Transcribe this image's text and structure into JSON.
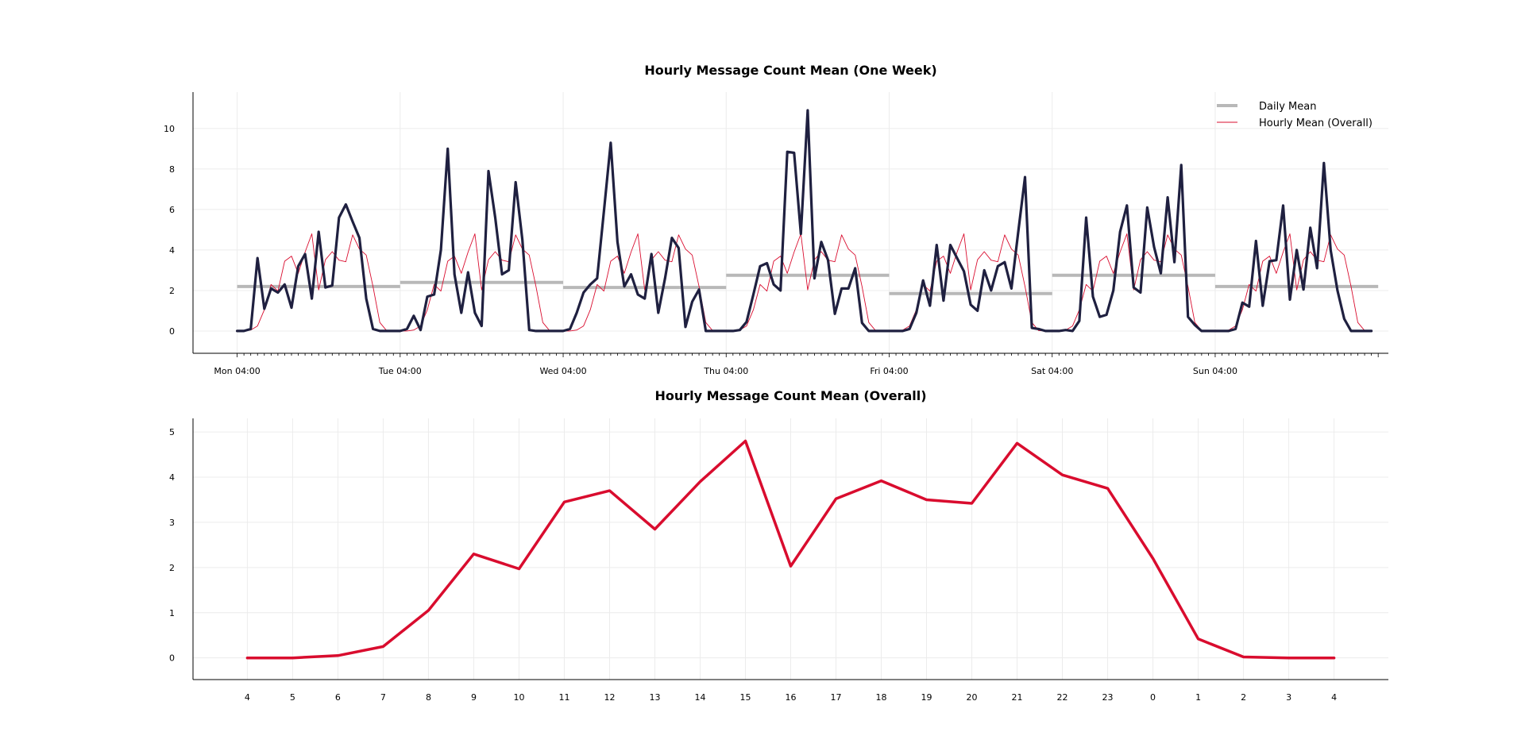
{
  "colors": {
    "week_line": "#1f2040",
    "daily_mean": "#b8b8b8",
    "overall_line": "#d90c2e",
    "grid": "#ececec"
  },
  "chart_data": [
    {
      "type": "line",
      "title": "Hourly Message Count Mean (One Week)",
      "xlabel": "",
      "ylabel": "",
      "ylim": [
        -1.1,
        11.8
      ],
      "xlim": [
        -6.5,
        169.5
      ],
      "yticks": [
        0,
        2,
        4,
        6,
        8,
        10
      ],
      "xticks": [
        {
          "x": 0,
          "label": "Mon 04:00"
        },
        {
          "x": 24,
          "label": "Tue 04:00"
        },
        {
          "x": 48,
          "label": "Wed 04:00"
        },
        {
          "x": 72,
          "label": "Thu 04:00"
        },
        {
          "x": 96,
          "label": "Fri 04:00"
        },
        {
          "x": 120,
          "label": "Sat 04:00"
        },
        {
          "x": 144,
          "label": "Sun 04:00"
        }
      ],
      "grid": true,
      "legend_position": "top-right",
      "legend": [
        {
          "name": "Daily Mean",
          "style": "daily"
        },
        {
          "name": "Hourly Mean (Overall)",
          "style": "overall"
        }
      ],
      "daily_means": [
        {
          "start": 0,
          "end": 24,
          "value": 2.2
        },
        {
          "start": 24,
          "end": 48,
          "value": 2.4
        },
        {
          "start": 48,
          "end": 72,
          "value": 2.15
        },
        {
          "start": 72,
          "end": 96,
          "value": 2.75
        },
        {
          "start": 96,
          "end": 120,
          "value": 1.85
        },
        {
          "start": 120,
          "end": 144,
          "value": 2.75
        },
        {
          "start": 144,
          "end": 168,
          "value": 2.2
        }
      ],
      "series_week": [
        0,
        0,
        0.1,
        3.6,
        1.1,
        2.1,
        1.9,
        2.3,
        1.15,
        3.2,
        3.8,
        1.6,
        4.9,
        2.15,
        2.25,
        5.6,
        6.25,
        5.4,
        4.6,
        1.6,
        0.1,
        0,
        0,
        0,
        0,
        0.1,
        0.75,
        0.05,
        1.7,
        1.8,
        4.0,
        9.0,
        2.8,
        0.9,
        2.9,
        0.9,
        0.25,
        7.9,
        5.6,
        2.8,
        3.0,
        7.35,
        4.5,
        0.05,
        0,
        0,
        0,
        0,
        0,
        0.1,
        0.9,
        1.9,
        2.3,
        2.6,
        5.9,
        9.3,
        4.4,
        2.2,
        2.8,
        1.8,
        1.6,
        3.8,
        0.9,
        2.6,
        4.6,
        4.1,
        0.2,
        1.45,
        2.05,
        0,
        0,
        0,
        0,
        0,
        0.05,
        0.45,
        1.8,
        3.2,
        3.35,
        2.3,
        2.0,
        8.85,
        8.8,
        4.8,
        10.9,
        2.6,
        4.4,
        3.5,
        0.85,
        2.1,
        2.1,
        3.1,
        0.4,
        0,
        0,
        0,
        0,
        0,
        0,
        0.1,
        0.9,
        2.5,
        1.25,
        4.25,
        1.5,
        4.25,
        3.6,
        2.95,
        1.3,
        1.0,
        3.0,
        2.0,
        3.2,
        3.4,
        2.1,
        4.9,
        7.6,
        0.15,
        0.1,
        0,
        0,
        0,
        0.05,
        0,
        0.5,
        5.6,
        1.7,
        0.7,
        0.8,
        2.0,
        4.9,
        6.2,
        2.15,
        1.9,
        6.1,
        4.15,
        2.85,
        6.6,
        3.4,
        8.2,
        0.7,
        0.3,
        0,
        0,
        0,
        0,
        0,
        0.1,
        1.4,
        1.2,
        4.45,
        1.25,
        3.45,
        3.5,
        6.2,
        1.55,
        4.0,
        2.05,
        5.1,
        3.1,
        8.3,
        4.0,
        2.0,
        0.6,
        0,
        0,
        0,
        0
      ],
      "series_overall_repeat": [
        0,
        0,
        0.05,
        0.25,
        1.05,
        2.3,
        1.97,
        3.45,
        3.7,
        2.85,
        3.9,
        4.8,
        2.03,
        3.52,
        3.92,
        3.5,
        3.42,
        4.75,
        4.05,
        3.75,
        2.2,
        0.42,
        0.02,
        0
      ]
    },
    {
      "type": "line",
      "title": "Hourly Message Count Mean (Overall)",
      "xlabel": "",
      "ylabel": "",
      "ylim": [
        -0.48,
        5.3
      ],
      "yticks": [
        0,
        1,
        2,
        3,
        4,
        5
      ],
      "categories": [
        "4",
        "5",
        "6",
        "7",
        "8",
        "9",
        "10",
        "11",
        "12",
        "13",
        "14",
        "15",
        "16",
        "17",
        "18",
        "19",
        "20",
        "21",
        "22",
        "23",
        "0",
        "1",
        "2",
        "3",
        "4"
      ],
      "values": [
        0,
        0,
        0.05,
        0.25,
        1.05,
        2.3,
        1.97,
        3.45,
        3.7,
        2.85,
        3.9,
        4.8,
        2.03,
        3.52,
        3.92,
        3.5,
        3.42,
        4.75,
        4.05,
        3.75,
        2.2,
        0.42,
        0.02,
        0,
        0
      ],
      "grid": true
    }
  ]
}
